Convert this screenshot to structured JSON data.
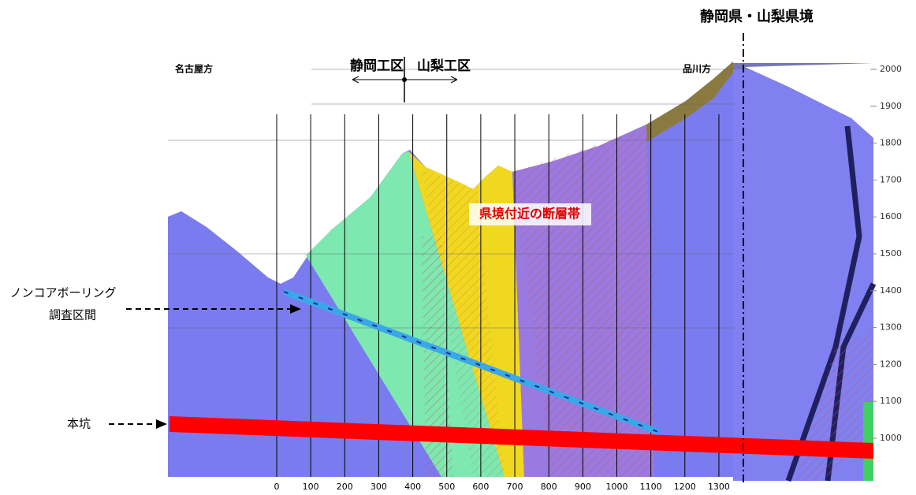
{
  "header": {
    "border_label": "静岡県・山梨県境"
  },
  "labels": {
    "west": "名古屋方",
    "east": "品川方",
    "shizuoka_section": "静岡工区",
    "yamanashi_section": "山梨工区",
    "fault_zone": "県境付近の断層帯",
    "boring_line1": "ノンコアボーリング",
    "boring_line2": "調査区間",
    "main_tunnel": "本坑"
  },
  "x_axis": [
    0,
    100,
    200,
    300,
    400,
    500,
    600,
    700,
    800,
    900,
    1000,
    1100,
    1200,
    1300
  ],
  "y_axis": [
    2000,
    1900,
    1800,
    1700,
    1600,
    1500,
    1400,
    1300,
    1200,
    1100,
    1000
  ]
}
